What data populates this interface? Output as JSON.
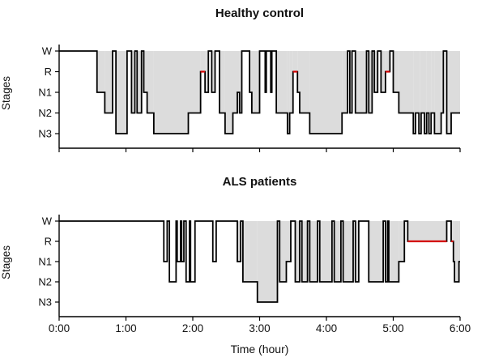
{
  "figure": {
    "background": "#ffffff",
    "line_color": "#000000",
    "rem_highlight_color": "#d40000",
    "sleep_fill_color": "#dcdcdc"
  },
  "chart_data": [
    {
      "type": "line",
      "subtype": "step-hypnogram",
      "title": "Healthy control",
      "ylabel": "Stages",
      "xlabel": "",
      "stage_labels": [
        "W",
        "R",
        "N1",
        "N2",
        "N3"
      ],
      "x_tick_labels": [
        "0:00",
        "1:00",
        "2:00",
        "3:00",
        "4:00",
        "5:00",
        "6:00"
      ],
      "show_x_tick_labels": false,
      "x_range_minutes": [
        0,
        360
      ],
      "sleep_fill_start_minute": 34,
      "end_minute": 360,
      "rem_in_red": true,
      "segments": [
        [
          0,
          "W"
        ],
        [
          34,
          "N1"
        ],
        [
          41,
          "N2"
        ],
        [
          48,
          "W"
        ],
        [
          51,
          "N3"
        ],
        [
          61,
          "W"
        ],
        [
          65,
          "N2"
        ],
        [
          68,
          "W"
        ],
        [
          70,
          "N2"
        ],
        [
          74,
          "W"
        ],
        [
          76,
          "N1"
        ],
        [
          79,
          "N2"
        ],
        [
          85,
          "N3"
        ],
        [
          116,
          "N2"
        ],
        [
          127,
          "R"
        ],
        [
          131,
          "N1"
        ],
        [
          134,
          "W"
        ],
        [
          137,
          "N1"
        ],
        [
          140,
          "W"
        ],
        [
          144,
          "N2"
        ],
        [
          149,
          "N3"
        ],
        [
          156,
          "N2"
        ],
        [
          160,
          "N1"
        ],
        [
          162,
          "N2"
        ],
        [
          164,
          "W"
        ],
        [
          171,
          "N1"
        ],
        [
          173,
          "N2"
        ],
        [
          180,
          "W"
        ],
        [
          185,
          "N1"
        ],
        [
          186,
          "W"
        ],
        [
          190,
          "N1"
        ],
        [
          191,
          "W"
        ],
        [
          195,
          "N2"
        ],
        [
          205,
          "N3"
        ],
        [
          207,
          "N2"
        ],
        [
          210,
          "R"
        ],
        [
          214,
          "N1"
        ],
        [
          216,
          "N2"
        ],
        [
          225,
          "N3"
        ],
        [
          254,
          "N2"
        ],
        [
          259,
          "W"
        ],
        [
          261,
          "N2"
        ],
        [
          263,
          "W"
        ],
        [
          266,
          "N2"
        ],
        [
          276,
          "W"
        ],
        [
          278,
          "N2"
        ],
        [
          281,
          "W"
        ],
        [
          283,
          "N1"
        ],
        [
          286,
          "W"
        ],
        [
          289,
          "N1"
        ],
        [
          293,
          "R"
        ],
        [
          297,
          "W"
        ],
        [
          300,
          "N1"
        ],
        [
          305,
          "N2"
        ],
        [
          318,
          "N3"
        ],
        [
          320,
          "N2"
        ],
        [
          323,
          "N3"
        ],
        [
          325,
          "N2"
        ],
        [
          328,
          "N3"
        ],
        [
          330,
          "N2"
        ],
        [
          332,
          "N3"
        ],
        [
          334,
          "N2"
        ],
        [
          337,
          "N3"
        ],
        [
          343,
          "N2"
        ],
        [
          345,
          "W"
        ],
        [
          348,
          "N3"
        ],
        [
          352,
          "N2"
        ]
      ]
    },
    {
      "type": "line",
      "subtype": "step-hypnogram",
      "title": "ALS patients",
      "ylabel": "Stages",
      "xlabel": "Time (hour)",
      "stage_labels": [
        "W",
        "R",
        "N1",
        "N2",
        "N3"
      ],
      "x_tick_labels": [
        "0:00",
        "1:00",
        "2:00",
        "3:00",
        "4:00",
        "5:00",
        "6:00"
      ],
      "show_x_tick_labels": true,
      "x_range_minutes": [
        0,
        360
      ],
      "sleep_fill_start_minute": 160,
      "end_minute": 360,
      "rem_in_red": true,
      "segments": [
        [
          0,
          "W"
        ],
        [
          94,
          "N1"
        ],
        [
          97,
          "W"
        ],
        [
          99,
          "N2"
        ],
        [
          105,
          "W"
        ],
        [
          106,
          "N1"
        ],
        [
          109,
          "W"
        ],
        [
          110,
          "N1"
        ],
        [
          112,
          "W"
        ],
        [
          114,
          "N2"
        ],
        [
          117,
          "W"
        ],
        [
          118,
          "N2"
        ],
        [
          122,
          "W"
        ],
        [
          138,
          "N1"
        ],
        [
          141,
          "W"
        ],
        [
          160,
          "N1"
        ],
        [
          163,
          "W"
        ],
        [
          165,
          "N2"
        ],
        [
          178,
          "N3"
        ],
        [
          196,
          "W"
        ],
        [
          198,
          "N2"
        ],
        [
          204,
          "N1"
        ],
        [
          208,
          "W"
        ],
        [
          212,
          "N2"
        ],
        [
          216,
          "W"
        ],
        [
          218,
          "N2"
        ],
        [
          223,
          "W"
        ],
        [
          225,
          "N2"
        ],
        [
          232,
          "W"
        ],
        [
          234,
          "N2"
        ],
        [
          245,
          "W"
        ],
        [
          247,
          "N2"
        ],
        [
          253,
          "W"
        ],
        [
          255,
          "N2"
        ],
        [
          264,
          "W"
        ],
        [
          266,
          "N2"
        ],
        [
          269,
          "W"
        ],
        [
          278,
          "N2"
        ],
        [
          291,
          "W"
        ],
        [
          293,
          "N2"
        ],
        [
          295,
          "W"
        ],
        [
          296,
          "N2"
        ],
        [
          305,
          "N1"
        ],
        [
          310,
          "W"
        ],
        [
          313,
          "R"
        ],
        [
          348,
          "W"
        ],
        [
          352,
          "R"
        ],
        [
          354,
          "N1"
        ],
        [
          355,
          "N2"
        ],
        [
          359,
          "N1"
        ]
      ]
    }
  ]
}
